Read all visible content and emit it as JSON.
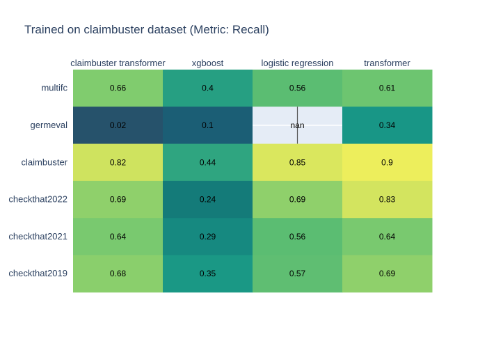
{
  "chart_data": {
    "type": "heatmap",
    "title": "Trained on claimbuster dataset (Metric: Recall)",
    "columns": [
      "claimbuster transformer",
      "xgboost",
      "logistic regression",
      "transformer"
    ],
    "rows": [
      "multifc",
      "germeval",
      "claimbuster",
      "checkthat2022",
      "checkthat2021",
      "checkthat2019"
    ],
    "values": [
      [
        0.66,
        0.4,
        0.56,
        0.61
      ],
      [
        0.02,
        0.1,
        null,
        0.34
      ],
      [
        0.82,
        0.44,
        0.85,
        0.9
      ],
      [
        0.69,
        0.24,
        0.69,
        0.83
      ],
      [
        0.64,
        0.29,
        0.56,
        0.64
      ],
      [
        0.68,
        0.35,
        0.57,
        0.69
      ]
    ],
    "missing_label": "nan",
    "colorscale": "Viridis-like (dark blue low → yellow high)",
    "missing_color": "#e5ecf6",
    "x_axis_position": "top",
    "legend": "none"
  }
}
